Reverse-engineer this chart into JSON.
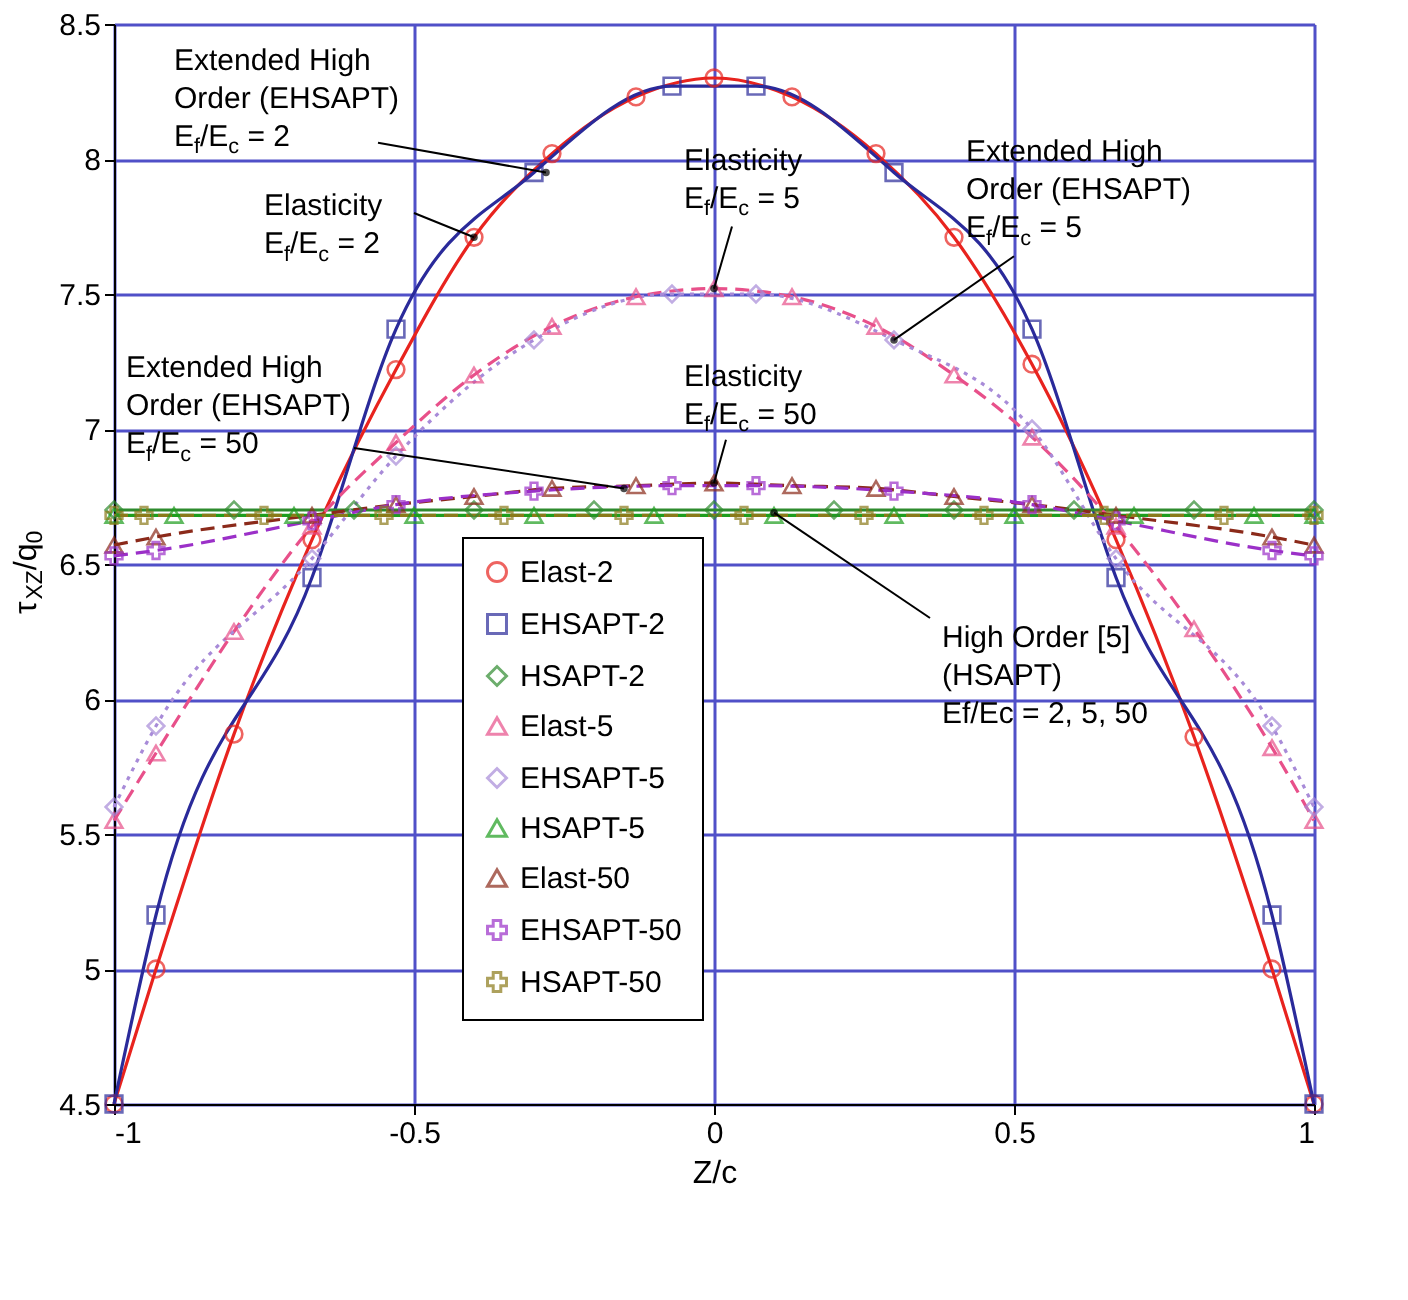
{
  "chart_data": {
    "type": "line",
    "xlabel": "Z/c",
    "ylabel": "τ$_{XZ}$/q$_{0}$",
    "xlim": [
      -1,
      1
    ],
    "xticks": [
      -1,
      -0.5,
      0,
      0.5,
      1
    ],
    "ylim": [
      4.5,
      8.5
    ],
    "yticks": [
      4.5,
      5,
      5.5,
      6,
      6.5,
      7,
      7.5,
      8,
      8.5
    ],
    "grid": true,
    "legend": "bottom",
    "series": [
      {
        "name": "Elast-2",
        "color": "#e8231e",
        "marker": "circle",
        "line_style": "solid",
        "x": [
          -1,
          -0.93,
          -0.8,
          -0.67,
          -0.53,
          -0.4,
          -0.27,
          -0.13,
          0,
          0.13,
          0.27,
          0.4,
          0.53,
          0.67,
          0.8,
          0.93,
          1
        ],
        "values": [
          4.5,
          5.0,
          5.87,
          6.59,
          7.22,
          7.71,
          8.02,
          8.23,
          8.3,
          8.23,
          8.02,
          7.71,
          7.24,
          6.59,
          5.86,
          5.0,
          4.5
        ]
      },
      {
        "name": "EHSAPT-2",
        "color": "#2a2a9a",
        "marker": "square",
        "line_style": "solid",
        "x": [
          -1,
          -0.93,
          -0.67,
          -0.53,
          -0.3,
          -0.07,
          0.07,
          0.3,
          0.53,
          0.67,
          0.93,
          1
        ],
        "values": [
          4.5,
          5.2,
          6.45,
          7.37,
          7.95,
          8.27,
          8.27,
          7.95,
          7.37,
          6.45,
          5.2,
          4.5
        ]
      },
      {
        "name": "HSAPT-2",
        "color": "#2e8b2e",
        "marker": "diamond",
        "line_style": "solid",
        "x": [
          -1,
          -0.8,
          -0.6,
          -0.4,
          -0.2,
          0,
          0.2,
          0.4,
          0.6,
          0.8,
          1
        ],
        "values": [
          6.7,
          6.7,
          6.7,
          6.7,
          6.7,
          6.7,
          6.7,
          6.7,
          6.7,
          6.7,
          6.7
        ]
      },
      {
        "name": "Elast-5",
        "color": "#e8508a",
        "marker": "triangle",
        "line_style": "dashed",
        "x": [
          -1,
          -0.93,
          -0.8,
          -0.67,
          -0.53,
          -0.4,
          -0.27,
          -0.13,
          0,
          0.13,
          0.27,
          0.4,
          0.53,
          0.67,
          0.8,
          0.93,
          1
        ],
        "values": [
          5.55,
          5.8,
          6.25,
          6.64,
          6.95,
          7.2,
          7.38,
          7.49,
          7.52,
          7.49,
          7.38,
          7.2,
          6.97,
          6.64,
          6.26,
          5.82,
          5.55
        ]
      },
      {
        "name": "EHSAPT-5",
        "color": "#a88bd8",
        "marker": "diamond",
        "line_style": "dotted",
        "x": [
          -1,
          -0.93,
          -0.67,
          -0.53,
          -0.3,
          -0.07,
          0.07,
          0.3,
          0.53,
          0.67,
          0.93,
          1
        ],
        "values": [
          5.6,
          5.9,
          6.52,
          6.9,
          7.33,
          7.5,
          7.5,
          7.33,
          7.0,
          6.52,
          5.9,
          5.6
        ]
      },
      {
        "name": "HSAPT-5",
        "color": "#1e9e1e",
        "marker": "triangle",
        "line_style": "solid",
        "x": [
          -1,
          -0.9,
          -0.7,
          -0.5,
          -0.3,
          -0.1,
          0.1,
          0.3,
          0.5,
          0.7,
          0.9,
          1
        ],
        "values": [
          6.68,
          6.68,
          6.68,
          6.68,
          6.68,
          6.68,
          6.68,
          6.68,
          6.68,
          6.68,
          6.68,
          6.68
        ]
      },
      {
        "name": "Elast-50",
        "color": "#8b2a1a",
        "marker": "triangle",
        "line_style": "dashed",
        "x": [
          -1,
          -0.93,
          -0.67,
          -0.53,
          -0.4,
          -0.27,
          -0.13,
          0,
          0.13,
          0.27,
          0.4,
          0.53,
          0.67,
          0.93,
          1
        ],
        "values": [
          6.57,
          6.6,
          6.68,
          6.72,
          6.75,
          6.78,
          6.79,
          6.8,
          6.79,
          6.78,
          6.75,
          6.72,
          6.68,
          6.6,
          6.57
        ]
      },
      {
        "name": "EHSAPT-50",
        "color": "#9b30c8",
        "marker": "cross",
        "line_style": "dashed",
        "x": [
          -1,
          -0.93,
          -0.67,
          -0.53,
          -0.3,
          -0.07,
          0.07,
          0.3,
          0.53,
          0.67,
          0.93,
          1
        ],
        "values": [
          6.53,
          6.55,
          6.66,
          6.72,
          6.77,
          6.79,
          6.79,
          6.77,
          6.72,
          6.66,
          6.55,
          6.53
        ]
      },
      {
        "name": "HSAPT-50",
        "color": "#8b7a1a",
        "marker": "cross",
        "line_style": "dashed",
        "x": [
          -1,
          -0.95,
          -0.75,
          -0.55,
          -0.35,
          -0.15,
          0.05,
          0.25,
          0.45,
          0.65,
          0.85,
          1
        ],
        "values": [
          6.68,
          6.68,
          6.68,
          6.68,
          6.68,
          6.68,
          6.68,
          6.68,
          6.68,
          6.68,
          6.68,
          6.68
        ]
      }
    ],
    "annotations": [
      {
        "text": "Extended High\nOrder (EHSAPT)\nE$_{f}$/E$_{c}$ = 2",
        "x": -0.28,
        "y": 7.95
      },
      {
        "text": "Elasticity\nE$_{f}$/E$_{c}$ = 2",
        "x": -0.4,
        "y": 7.71
      },
      {
        "text": "Elasticity\nE$_{f}$/E$_{c}$ = 5",
        "x": 0,
        "y": 7.52
      },
      {
        "text": "Extended High\nOrder (EHSAPT)\nE$_{f}$/E$_{c}$ = 5",
        "x": 0.3,
        "y": 7.33
      },
      {
        "text": "Extended High\nOrder (EHSAPT)\nE$_{f}$/E$_{c}$ = 50",
        "x": -0.15,
        "y": 6.78
      },
      {
        "text": "Elasticity\nE$_{f}$/E$_{c}$ = 50",
        "x": 0,
        "y": 6.8
      },
      {
        "text": "High Order [5]\n(HSAPT)\nEf/Ec = 2, 5, 50",
        "x": 0.1,
        "y": 6.69
      }
    ]
  }
}
